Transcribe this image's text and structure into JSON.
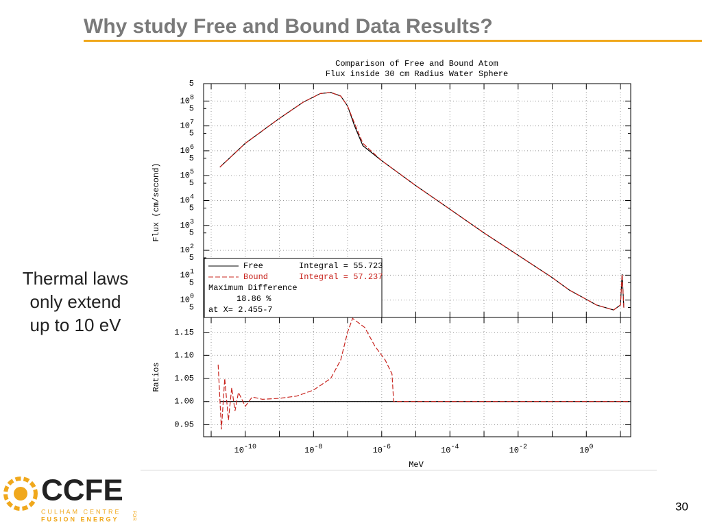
{
  "slide": {
    "title": "Why study Free and Bound Data Results?",
    "side_text": [
      "Thermal laws",
      "only extend",
      "up to 10 eV"
    ],
    "page_number": "30",
    "logo": {
      "name": "CCFE",
      "line1": "CULHAM CENTRE",
      "line2": "FUSION ENERGY",
      "side": "FOR"
    }
  },
  "chart_data": [
    {
      "type": "line",
      "title": [
        "Comparison of Free and Bound Atom",
        "Flux inside 30 cm Radius Water Sphere"
      ],
      "y_label": "Flux (cm/second)",
      "log_x": true,
      "log_y": true,
      "grid": true,
      "xlim": [
        6e-12,
        20
      ],
      "ylim": [
        0.2,
        500000000
      ],
      "xticks_minor": [
        1e-11,
        1e-10,
        1e-09,
        1e-08,
        1e-07,
        1e-06,
        1e-05,
        0.0001,
        0.001,
        0.01,
        0.1,
        1,
        10
      ],
      "yticks": [
        {
          "value": 500000000,
          "label": "5"
        },
        {
          "value": 100000000,
          "label": "10",
          "exponent": "8"
        },
        {
          "value": 50000000,
          "label": "5"
        },
        {
          "value": 10000000,
          "label": "10",
          "exponent": "7"
        },
        {
          "value": 5000000,
          "label": "5"
        },
        {
          "value": 1000000,
          "label": "10",
          "exponent": "6"
        },
        {
          "value": 500000,
          "label": "5"
        },
        {
          "value": 100000,
          "label": "10",
          "exponent": "5"
        },
        {
          "value": 50000,
          "label": "5"
        },
        {
          "value": 10000,
          "label": "10",
          "exponent": "4"
        },
        {
          "value": 5000,
          "label": "5"
        },
        {
          "value": 1000,
          "label": "10",
          "exponent": "3"
        },
        {
          "value": 500,
          "label": "5"
        },
        {
          "value": 100,
          "label": "10",
          "exponent": "2"
        },
        {
          "value": 50,
          "label": "5"
        },
        {
          "value": 10,
          "label": "10",
          "exponent": "1"
        },
        {
          "value": 5,
          "label": "5"
        },
        {
          "value": 1,
          "label": "10",
          "exponent": "0"
        },
        {
          "value": 0.5,
          "label": "5"
        }
      ],
      "series": [
        {
          "name": "Free",
          "legend_text": "Integral = 55.723",
          "color": "#000000",
          "dashed": false,
          "x": [
            1.8e-11,
            1e-10,
            1e-09,
            5e-09,
            1.6e-08,
            3.2e-08,
            6.3e-08,
            1e-07,
            1.6e-07,
            2.8e-07,
            1e-06,
            1e-05,
            0.0001,
            0.001,
            0.01,
            0.1,
            0.32,
            0.8,
            2,
            6.3,
            10,
            11.2,
            12.6
          ],
          "values": [
            220000,
            2000000,
            20000000,
            90000000,
            200000000,
            220000000,
            160000000,
            63000000,
            10000000,
            1600000,
            400000,
            40000,
            4500,
            500,
            63,
            8,
            2.5,
            1.26,
            0.63,
            0.4,
            0.63,
            11,
            0.5
          ]
        },
        {
          "name": "Bound",
          "legend_text": "Integral = 57.237",
          "color": "#c8241e",
          "dashed": true,
          "x": [
            1.8e-11,
            1e-10,
            1e-09,
            5e-09,
            1.6e-08,
            3.2e-08,
            6.3e-08,
            1e-07,
            1.6e-07,
            2.8e-07,
            1e-06,
            1e-05,
            0.0001,
            0.001,
            0.01,
            0.1,
            0.32,
            0.8,
            2,
            6.3,
            10,
            11.2,
            12.6
          ],
          "values": [
            220000,
            2000000,
            20000000,
            90000000,
            200000000,
            220000000,
            160000000,
            63000000,
            12600000,
            2000000,
            400000,
            40000,
            4500,
            500,
            63,
            8,
            2.5,
            1.26,
            0.63,
            0.4,
            0.63,
            11,
            0.5
          ]
        }
      ],
      "annotations": [
        "Maximum Difference",
        "18.86 %",
        "at X= 2.455-7"
      ]
    },
    {
      "type": "line",
      "y_label": "Ratios",
      "x_label": "MeV",
      "log_x": true,
      "grid": true,
      "xlim": [
        6e-12,
        20
      ],
      "ylim": [
        0.924,
        1.182
      ],
      "xticks": [
        {
          "value": 1e-10,
          "label": "10",
          "exponent": "-10"
        },
        {
          "value": 1e-08,
          "label": "10",
          "exponent": "-8"
        },
        {
          "value": 1e-06,
          "label": "10",
          "exponent": "-6"
        },
        {
          "value": 0.0001,
          "label": "10",
          "exponent": "-4"
        },
        {
          "value": 0.01,
          "label": "10",
          "exponent": "-2"
        },
        {
          "value": 1,
          "label": "10",
          "exponent": "0"
        }
      ],
      "xticks_minor": [
        1e-11,
        1e-09,
        1e-07,
        1e-05,
        0.001,
        0.1,
        10
      ],
      "yticks": [
        1.15,
        {
          "value": 1.1,
          "label": "1.10"
        },
        1.05,
        {
          "value": 1,
          "label": "1.00"
        },
        0.95
      ],
      "series": [
        {
          "name": "Free",
          "color": "#000000",
          "dashed": false,
          "x": [
            1.8e-11,
            18
          ],
          "values": [
            1,
            1
          ]
        },
        {
          "name": "Bound",
          "color": "#c8241e",
          "dashed": true,
          "x": [
            1.6e-11,
            2e-11,
            2.5e-11,
            3.2e-11,
            4e-11,
            5e-11,
            6.3e-11,
            1e-10,
            1.6e-10,
            3.2e-10,
            1e-09,
            3.2e-09,
            1e-08,
            3.2e-08,
            6.3e-08,
            1e-07,
            1.4e-07,
            3.2e-07,
            6.3e-07,
            1.26e-06,
            2e-06,
            2.24e-06,
            18
          ],
          "values": [
            1.08,
            0.94,
            1.05,
            0.96,
            1.03,
            0.98,
            1.02,
            0.99,
            1.01,
            1.005,
            1.007,
            1.012,
            1.025,
            1.05,
            1.09,
            1.15,
            1.18,
            1.16,
            1.12,
            1.09,
            1.06,
            1,
            1
          ]
        }
      ]
    }
  ]
}
